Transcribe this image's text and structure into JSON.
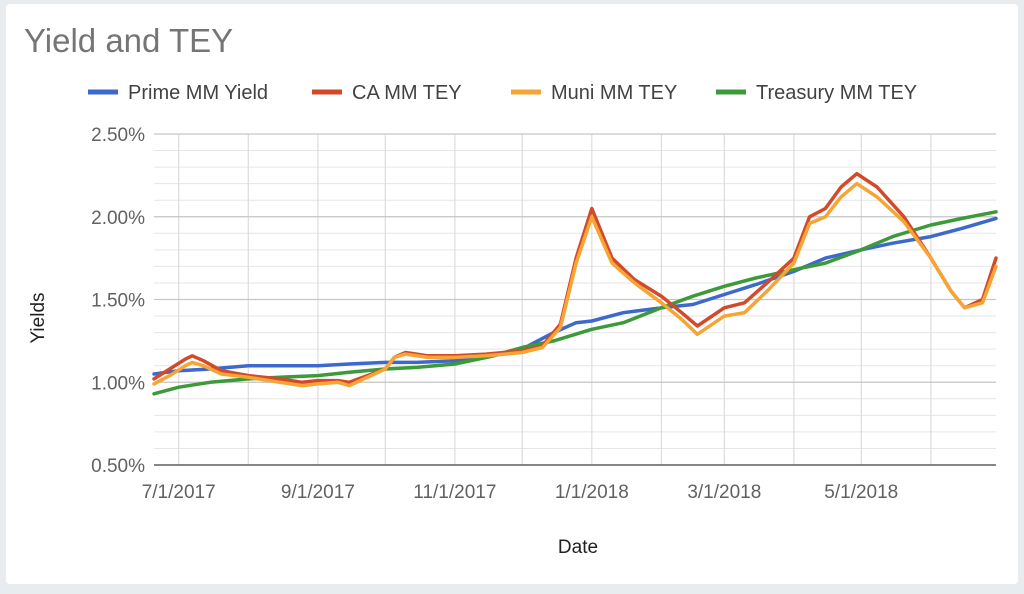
{
  "chart_data": {
    "type": "line",
    "title": "Yield and TEY",
    "xlabel": "Date",
    "ylabel": "Yields",
    "x_ticks": [
      "7/1/2017",
      "9/1/2017",
      "11/1/2017",
      "1/1/2018",
      "3/1/2018",
      "5/1/2018"
    ],
    "y_ticks": [
      "0.50%",
      "1.00%",
      "1.50%",
      "2.00%",
      "2.50%"
    ],
    "ylim": [
      0.5,
      2.5
    ],
    "xlim": [
      "2017-06-20",
      "2018-06-30"
    ],
    "grid": true,
    "legend": "top",
    "series": [
      {
        "name": "Prime MM Yield",
        "color": "#3d68cc",
        "points": [
          [
            "2017-06-20",
            1.05
          ],
          [
            "2017-07-01",
            1.07
          ],
          [
            "2017-07-15",
            1.08
          ],
          [
            "2017-08-01",
            1.1
          ],
          [
            "2017-08-15",
            1.1
          ],
          [
            "2017-09-01",
            1.1
          ],
          [
            "2017-09-15",
            1.11
          ],
          [
            "2017-10-01",
            1.12
          ],
          [
            "2017-10-15",
            1.12
          ],
          [
            "2017-11-01",
            1.13
          ],
          [
            "2017-11-15",
            1.15
          ],
          [
            "2017-12-01",
            1.2
          ],
          [
            "2017-12-15",
            1.3
          ],
          [
            "2017-12-25",
            1.36
          ],
          [
            "2018-01-01",
            1.37
          ],
          [
            "2018-01-15",
            1.42
          ],
          [
            "2018-02-01",
            1.45
          ],
          [
            "2018-02-15",
            1.47
          ],
          [
            "2018-03-01",
            1.53
          ],
          [
            "2018-03-15",
            1.59
          ],
          [
            "2018-04-01",
            1.67
          ],
          [
            "2018-04-15",
            1.75
          ],
          [
            "2018-05-01",
            1.8
          ],
          [
            "2018-05-15",
            1.84
          ],
          [
            "2018-06-01",
            1.88
          ],
          [
            "2018-06-15",
            1.93
          ],
          [
            "2018-06-30",
            1.99
          ]
        ]
      },
      {
        "name": "CA MM TEY",
        "color": "#d24a2a",
        "points": [
          [
            "2017-06-20",
            1.02
          ],
          [
            "2017-06-27",
            1.08
          ],
          [
            "2017-07-04",
            1.14
          ],
          [
            "2017-07-07",
            1.16
          ],
          [
            "2017-07-12",
            1.13
          ],
          [
            "2017-07-20",
            1.07
          ],
          [
            "2017-08-01",
            1.04
          ],
          [
            "2017-08-15",
            1.02
          ],
          [
            "2017-08-25",
            1.0
          ],
          [
            "2017-09-01",
            1.01
          ],
          [
            "2017-09-10",
            1.01
          ],
          [
            "2017-09-15",
            1.0
          ],
          [
            "2017-10-01",
            1.08
          ],
          [
            "2017-10-05",
            1.15
          ],
          [
            "2017-10-10",
            1.18
          ],
          [
            "2017-10-20",
            1.16
          ],
          [
            "2017-11-01",
            1.16
          ],
          [
            "2017-11-15",
            1.17
          ],
          [
            "2017-12-01",
            1.19
          ],
          [
            "2017-12-10",
            1.22
          ],
          [
            "2017-12-18",
            1.35
          ],
          [
            "2017-12-25",
            1.75
          ],
          [
            "2018-01-01",
            2.05
          ],
          [
            "2018-01-10",
            1.75
          ],
          [
            "2018-01-20",
            1.62
          ],
          [
            "2018-02-01",
            1.52
          ],
          [
            "2018-02-10",
            1.42
          ],
          [
            "2018-02-17",
            1.34
          ],
          [
            "2018-03-01",
            1.45
          ],
          [
            "2018-03-10",
            1.48
          ],
          [
            "2018-03-20",
            1.6
          ],
          [
            "2018-04-01",
            1.75
          ],
          [
            "2018-04-08",
            2.0
          ],
          [
            "2018-04-15",
            2.05
          ],
          [
            "2018-04-22",
            2.18
          ],
          [
            "2018-04-29",
            2.26
          ],
          [
            "2018-05-08",
            2.18
          ],
          [
            "2018-05-20",
            2.0
          ],
          [
            "2018-06-01",
            1.75
          ],
          [
            "2018-06-10",
            1.55
          ],
          [
            "2018-06-16",
            1.45
          ],
          [
            "2018-06-24",
            1.5
          ],
          [
            "2018-06-30",
            1.75
          ]
        ]
      },
      {
        "name": "Muni MM TEY",
        "color": "#f6a534",
        "points": [
          [
            "2017-06-20",
            0.99
          ],
          [
            "2017-06-27",
            1.04
          ],
          [
            "2017-07-04",
            1.1
          ],
          [
            "2017-07-07",
            1.12
          ],
          [
            "2017-07-12",
            1.1
          ],
          [
            "2017-07-20",
            1.05
          ],
          [
            "2017-08-01",
            1.03
          ],
          [
            "2017-08-15",
            1.0
          ],
          [
            "2017-08-25",
            0.98
          ],
          [
            "2017-09-01",
            0.99
          ],
          [
            "2017-09-10",
            1.0
          ],
          [
            "2017-09-15",
            0.98
          ],
          [
            "2017-10-01",
            1.08
          ],
          [
            "2017-10-05",
            1.15
          ],
          [
            "2017-10-10",
            1.17
          ],
          [
            "2017-10-20",
            1.15
          ],
          [
            "2017-11-01",
            1.15
          ],
          [
            "2017-11-15",
            1.16
          ],
          [
            "2017-12-01",
            1.18
          ],
          [
            "2017-12-10",
            1.21
          ],
          [
            "2017-12-18",
            1.33
          ],
          [
            "2017-12-25",
            1.72
          ],
          [
            "2018-01-01",
            2.0
          ],
          [
            "2018-01-10",
            1.72
          ],
          [
            "2018-01-20",
            1.6
          ],
          [
            "2018-02-01",
            1.48
          ],
          [
            "2018-02-10",
            1.38
          ],
          [
            "2018-02-17",
            1.29
          ],
          [
            "2018-03-01",
            1.4
          ],
          [
            "2018-03-10",
            1.42
          ],
          [
            "2018-03-20",
            1.55
          ],
          [
            "2018-04-01",
            1.72
          ],
          [
            "2018-04-08",
            1.96
          ],
          [
            "2018-04-15",
            2.0
          ],
          [
            "2018-04-22",
            2.12
          ],
          [
            "2018-04-29",
            2.2
          ],
          [
            "2018-05-08",
            2.12
          ],
          [
            "2018-05-20",
            1.97
          ],
          [
            "2018-06-01",
            1.75
          ],
          [
            "2018-06-10",
            1.55
          ],
          [
            "2018-06-16",
            1.45
          ],
          [
            "2018-06-24",
            1.48
          ],
          [
            "2018-06-30",
            1.7
          ]
        ]
      },
      {
        "name": "Treasury MM TEY",
        "color": "#3c9a3a",
        "points": [
          [
            "2017-06-20",
            0.93
          ],
          [
            "2017-07-01",
            0.97
          ],
          [
            "2017-07-15",
            1.0
          ],
          [
            "2017-08-01",
            1.02
          ],
          [
            "2017-08-15",
            1.03
          ],
          [
            "2017-09-01",
            1.04
          ],
          [
            "2017-09-15",
            1.06
          ],
          [
            "2017-10-01",
            1.08
          ],
          [
            "2017-10-15",
            1.09
          ],
          [
            "2017-11-01",
            1.11
          ],
          [
            "2017-11-15",
            1.15
          ],
          [
            "2017-12-01",
            1.21
          ],
          [
            "2017-12-15",
            1.25
          ],
          [
            "2018-01-01",
            1.32
          ],
          [
            "2018-01-15",
            1.36
          ],
          [
            "2018-02-01",
            1.45
          ],
          [
            "2018-02-15",
            1.52
          ],
          [
            "2018-03-01",
            1.58
          ],
          [
            "2018-03-15",
            1.63
          ],
          [
            "2018-04-01",
            1.68
          ],
          [
            "2018-04-15",
            1.72
          ],
          [
            "2018-05-01",
            1.8
          ],
          [
            "2018-05-15",
            1.88
          ],
          [
            "2018-06-01",
            1.95
          ],
          [
            "2018-06-15",
            1.99
          ],
          [
            "2018-06-30",
            2.03
          ]
        ]
      }
    ]
  }
}
